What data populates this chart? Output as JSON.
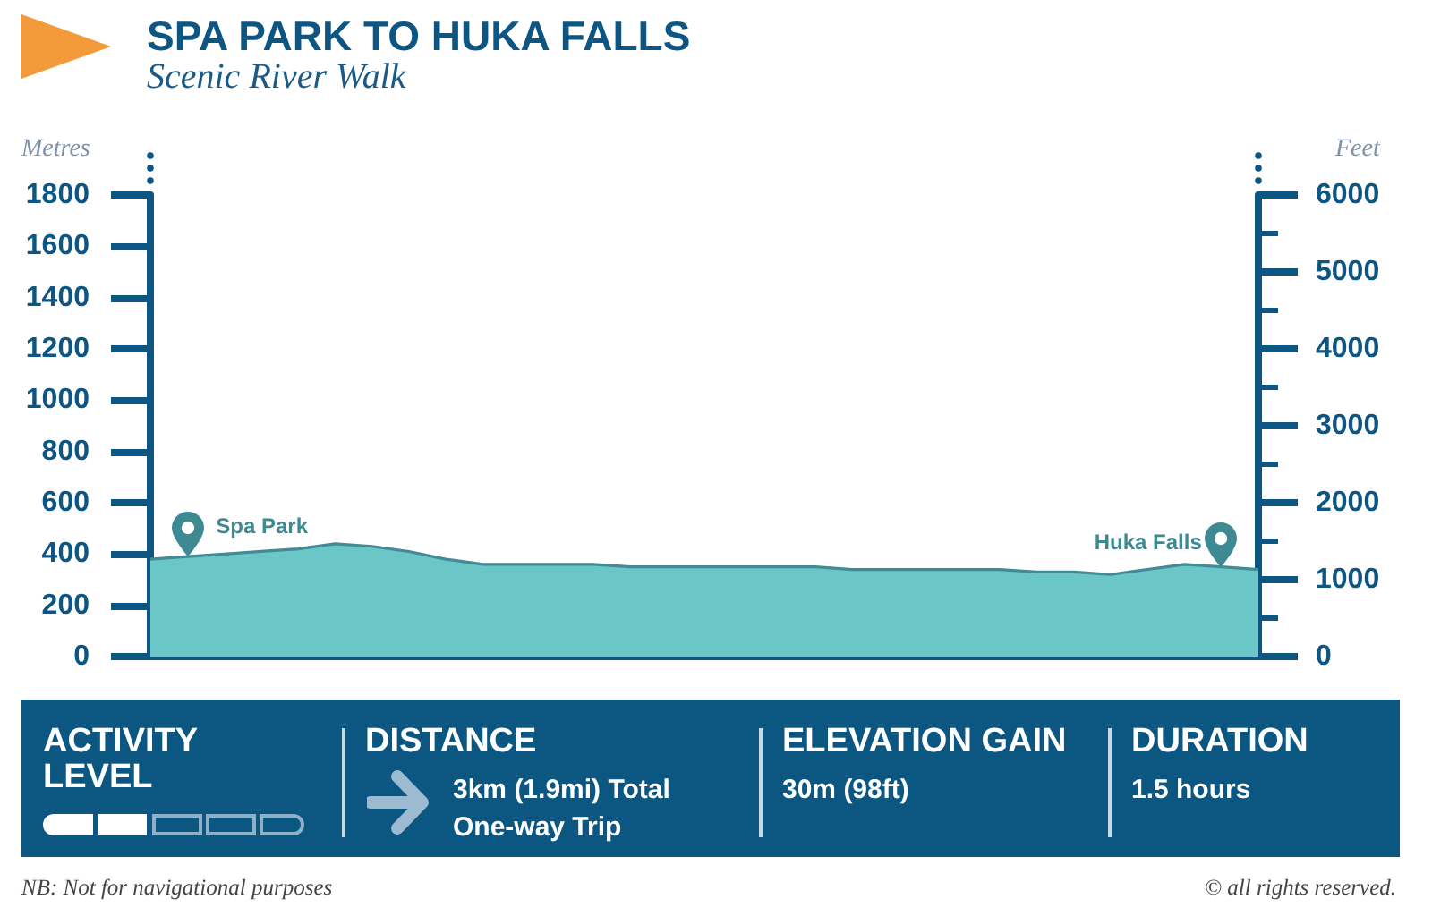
{
  "chart_data": [
    {
      "type": "area",
      "title": "SPA PARK TO HUKA FALLS",
      "subtitle": "Scenic River Walk",
      "ylabel": "Metres",
      "y2label": "Feet",
      "categories": [
        null,
        null,
        null,
        null,
        null,
        null,
        null,
        null,
        null,
        null,
        null,
        null,
        null,
        null,
        null,
        null,
        null,
        null,
        null,
        null,
        null,
        null,
        null,
        null,
        null,
        null,
        null,
        null,
        null,
        null,
        null
      ],
      "values": [
        380,
        390,
        400,
        410,
        420,
        440,
        430,
        410,
        380,
        360,
        360,
        360,
        360,
        350,
        350,
        350,
        350,
        350,
        350,
        340,
        340,
        340,
        340,
        340,
        330,
        330,
        320,
        340,
        360,
        350,
        340
      ],
      "color": "#6bc7c7",
      "ylim": [
        0,
        1800
      ],
      "yticks": [
        0,
        200,
        400,
        600,
        800,
        1000,
        1200,
        1400,
        1600,
        1800
      ],
      "y2lim": [
        0,
        6000
      ],
      "y2ticks": [
        0,
        {
          "value": 500,
          "label": null
        },
        1000,
        {
          "value": 1500,
          "label": null
        },
        2000,
        {
          "value": 2500,
          "label": null
        },
        3000,
        {
          "value": 3500,
          "label": null
        },
        4000,
        {
          "value": 4500,
          "label": null
        },
        5000,
        {
          "value": 5500,
          "label": null
        },
        6000
      ],
      "annotations": [
        "Spa Park",
        "Huka Falls",
        "NB: Not for navigational purposes",
        "© all rights reserved."
      ]
    },
    {
      "type": "other",
      "annotations": [
        "ACTIVITY LEVEL",
        "DISTANCE",
        "3km (1.9mi) Total One-way Trip",
        "ELEVATION GAIN",
        "30m (98ft)",
        "DURATION",
        "1.5 hours"
      ]
    }
  ]
}
